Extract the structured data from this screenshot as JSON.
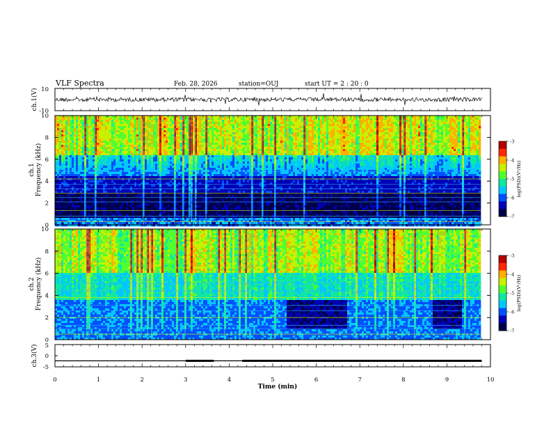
{
  "header": {
    "title": "VLF Spectra",
    "date": "Feb. 28, 2026",
    "station": "station=OUJ",
    "start": "start  UT =  2 : 20 : 0"
  },
  "colors": {
    "colormap": [
      "#00004a",
      "#0000b4",
      "#0050ff",
      "#00c8ff",
      "#10e8a0",
      "#50ff30",
      "#c8f000",
      "#ffb000",
      "#ff2800",
      "#b40000"
    ],
    "trace": "#000000"
  },
  "chart_data": [
    {
      "type": "line",
      "name": "waveform-ch1",
      "ylabel": "ch.1(V)",
      "ylim": [
        -10,
        10
      ],
      "yticks": [
        "10",
        "-10"
      ],
      "baseline_value": 0,
      "series": [
        {
          "values_description_free": true
        }
      ]
    },
    {
      "type": "heatmap",
      "name": "spectrogram-ch1",
      "ylabel_line1": "ch.1",
      "ylabel_line2": "Frequency (kHz)",
      "ylim": [
        0,
        10
      ],
      "yticks": [
        "0",
        "2",
        "4",
        "6",
        "8",
        "10"
      ],
      "xlim": [
        0,
        10
      ],
      "colorbar": {
        "label": "log(PSD)(V²/Hz)",
        "ticks": [
          "-3",
          "-4",
          "-5",
          "-6",
          "-7"
        ],
        "range": [
          -7,
          -3
        ]
      }
    },
    {
      "type": "heatmap",
      "name": "spectrogram-ch2",
      "ylabel_line1": "ch.2",
      "ylabel_line2": "Frequency (kHz)",
      "ylim": [
        0,
        10
      ],
      "yticks": [
        "0",
        "2",
        "4",
        "6",
        "8",
        "10"
      ],
      "xlim": [
        0,
        10
      ],
      "colorbar": {
        "label": "log(PSD)(V²/Hz)",
        "ticks": [
          "-3",
          "-4",
          "-5",
          "-6",
          "-7"
        ],
        "range": [
          -7,
          -3
        ]
      }
    },
    {
      "type": "line",
      "name": "ch3",
      "ylabel": "ch.3(V)",
      "ylim": [
        -5,
        5
      ],
      "yticks": [
        "5",
        "0",
        "-5"
      ],
      "x": [
        0,
        3.0,
        3.0,
        3.65,
        3.65,
        4.3,
        4.3,
        9.8
      ],
      "y": [
        -2.3,
        -2.3,
        -2.3,
        -2.3,
        -2.3,
        -2.3,
        -2.3,
        -2.3
      ],
      "thick_segments": [
        [
          3.0,
          3.65
        ],
        [
          4.3,
          9.8
        ]
      ]
    }
  ],
  "xaxis": {
    "label": "Time (min)",
    "ticks": [
      "0",
      "1",
      "2",
      "3",
      "4",
      "5",
      "6",
      "7",
      "8",
      "9",
      "10"
    ],
    "xlim": [
      0,
      10
    ]
  }
}
